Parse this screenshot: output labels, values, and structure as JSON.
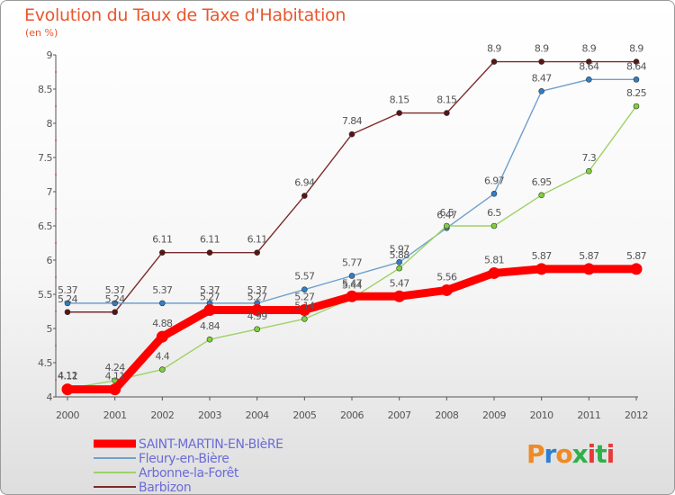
{
  "header": {
    "title": "Evolution du Taux de Taxe d'Habitation",
    "subtitle": "(en %)"
  },
  "logo": {
    "text": "Proxiti",
    "colors": [
      "#f08a24",
      "#2f7fd0",
      "#f08a24",
      "#2fb04a",
      "#e83a3a",
      "#2fb04a",
      "#e83a3a"
    ]
  },
  "chart_data": {
    "type": "line",
    "title": "Evolution du Taux de Taxe d'Habitation",
    "ylabel": "(en %)",
    "x": [
      "2000",
      "2001",
      "2002",
      "2003",
      "2004",
      "2005",
      "2006",
      "2007",
      "2008",
      "2009",
      "2010",
      "2011",
      "2012"
    ],
    "ylim": [
      4,
      9
    ],
    "yticks": [
      "4",
      "4.5",
      "5",
      "5.5",
      "6",
      "6.5",
      "7",
      "7.5",
      "8",
      "8.5",
      "9"
    ],
    "legend_position": "bottom-left",
    "series": [
      {
        "name": "Barbizon",
        "color": "#7b2b2b",
        "dot": "#5a1414",
        "values": [
          5.24,
          5.24,
          6.11,
          6.11,
          6.11,
          6.94,
          7.84,
          8.15,
          8.15,
          8.9,
          8.9,
          8.9,
          8.9
        ]
      },
      {
        "name": "Fleury-en-Bière",
        "color": "#6fa0cc",
        "dot": "#2f7fc8",
        "values": [
          5.37,
          5.37,
          5.37,
          5.37,
          5.37,
          5.57,
          5.77,
          5.97,
          6.47,
          6.97,
          8.47,
          8.64,
          8.64
        ]
      },
      {
        "name": "Arbonne-la-Forêt",
        "color": "#9ed266",
        "dot": "#7ed23a",
        "values": [
          4.12,
          4.24,
          4.4,
          4.84,
          4.99,
          5.14,
          5.44,
          5.88,
          6.5,
          6.5,
          6.95,
          7.3,
          8.25
        ]
      },
      {
        "name": "SAINT-MARTIN-EN-BIèRE",
        "color": "#ff0000",
        "dot": "#ff0000",
        "values": [
          4.11,
          4.11,
          4.88,
          5.27,
          5.27,
          5.27,
          5.47,
          5.47,
          5.56,
          5.81,
          5.87,
          5.87,
          5.87
        ]
      }
    ],
    "labels": [
      {
        "series": 0,
        "text": [
          "5.24",
          "5.24",
          "6.11",
          "6.11",
          "6.11",
          "6.94",
          "7.84",
          "8.15",
          "8.15",
          "8.9",
          "8.9",
          "8.9",
          "8.9"
        ]
      },
      {
        "series": 1,
        "text": [
          "5.37",
          "5.37",
          "5.37",
          "5.37",
          "5.37",
          "5.57",
          "5.77",
          "5.97",
          "6.47",
          "6.97",
          "8.47",
          "8.64",
          "8.64"
        ]
      },
      {
        "series": 2,
        "text": [
          "4.12",
          "4.24",
          "4.4",
          "4.84",
          "4.99",
          "5.14",
          "5.44",
          "5.88",
          "6.5",
          "6.5",
          "6.95",
          "7.3",
          "8.25"
        ]
      },
      {
        "series": 3,
        "text": [
          "4.11",
          "4.11",
          "4.88",
          "5.27",
          "5.27",
          "5.27",
          "5.47",
          "5.47",
          "5.56",
          "5.81",
          "5.87",
          "5.87",
          "5.87"
        ]
      }
    ],
    "legend": [
      {
        "label": "SAINT-MARTIN-EN-BIèRE",
        "color": "#ff0000",
        "text_color": "#6b6bd8",
        "thick": true
      },
      {
        "label": "Fleury-en-Bière",
        "color": "#6fa0cc",
        "text_color": "#6b6bd8",
        "thick": false
      },
      {
        "label": "Arbonne-la-Forêt",
        "color": "#9ed266",
        "text_color": "#6b6bd8",
        "thick": false
      },
      {
        "label": "Barbizon",
        "color": "#7b2b2b",
        "text_color": "#6b6bd8",
        "thick": false
      }
    ]
  }
}
